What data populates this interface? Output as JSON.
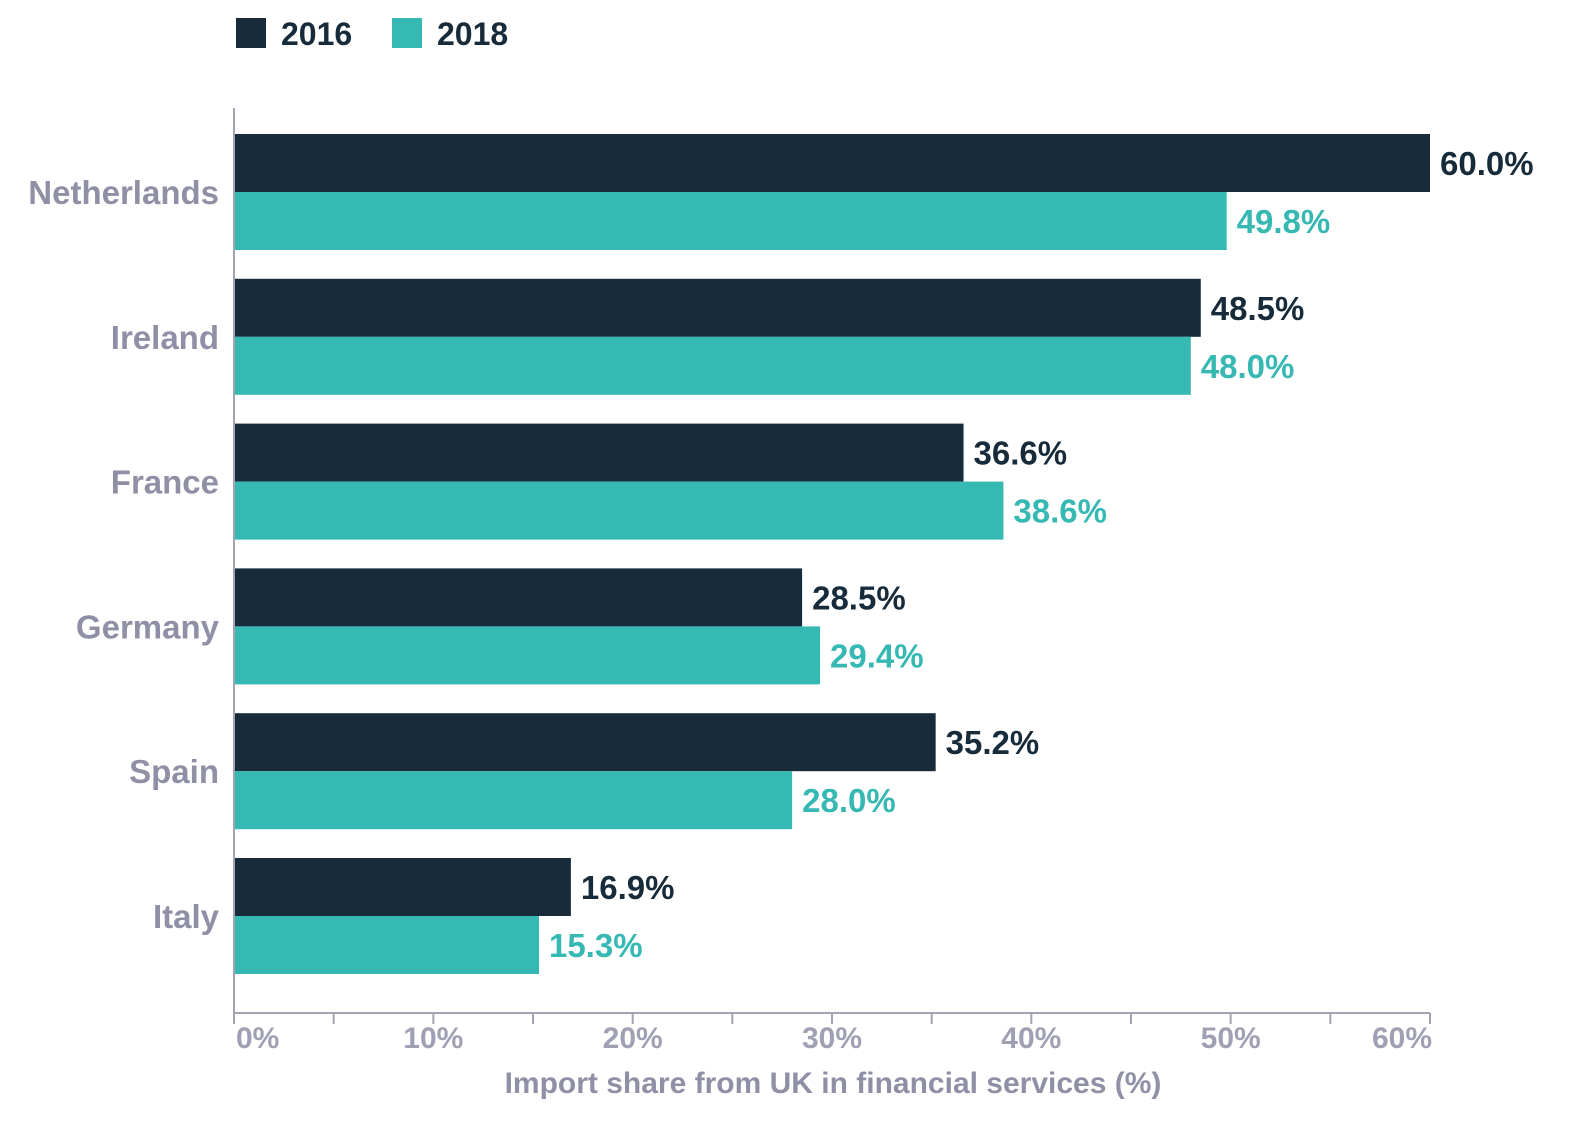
{
  "colors": {
    "series_2016": "#172b3a",
    "series_2018": "#36b8b3",
    "axis": "#a3a3b3",
    "category_label": "#8f8fa6",
    "tick_label": "#a0a0b4"
  },
  "chart_data": {
    "type": "bar",
    "orientation": "horizontal",
    "categories": [
      "Netherlands",
      "Ireland",
      "France",
      "Germany",
      "Spain",
      "Italy"
    ],
    "series": [
      {
        "name": "2016",
        "values": [
          60.0,
          48.5,
          36.6,
          28.5,
          35.2,
          16.9
        ],
        "labels": [
          "60.0%",
          "48.5%",
          "36.6%",
          "28.5%",
          "35.2%",
          "16.9%"
        ]
      },
      {
        "name": "2018",
        "values": [
          49.8,
          48.0,
          38.6,
          29.4,
          28.0,
          15.3
        ],
        "labels": [
          "49.8%",
          "48.0%",
          "38.6%",
          "29.4%",
          "28.0%",
          "15.3%"
        ]
      }
    ],
    "xlabel": "Import share from UK in financial services (%)",
    "ylabel": "",
    "xlim": [
      0,
      60
    ],
    "x_ticks": [
      0,
      10,
      20,
      30,
      40,
      50,
      60
    ],
    "x_tick_labels": [
      "0%",
      "10%",
      "20%",
      "30%",
      "40%",
      "50%",
      "60%"
    ],
    "grid": false,
    "legend": "top-left"
  }
}
